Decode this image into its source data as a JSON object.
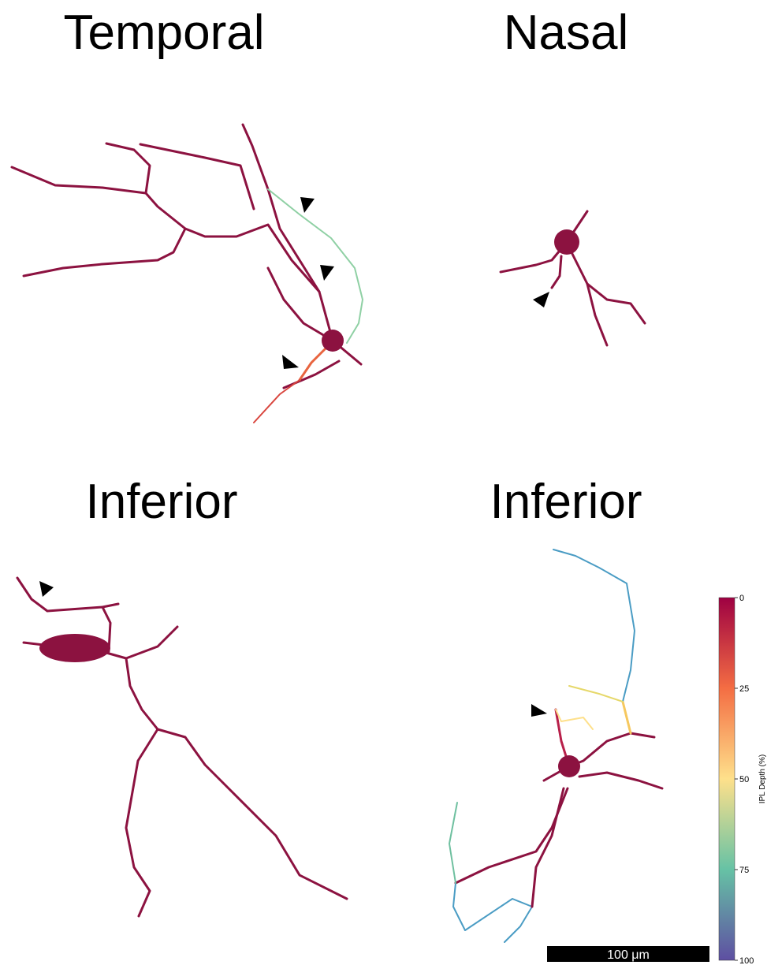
{
  "panels": [
    {
      "title": "Temporal"
    },
    {
      "title": "Nasal"
    },
    {
      "title": "Inferior"
    },
    {
      "title": "Inferior"
    }
  ],
  "colorbar": {
    "label": "IPL Depth (%)",
    "lim": [
      0,
      100
    ],
    "ticks": [
      0,
      25,
      50,
      75,
      100
    ],
    "colors": [
      "#9e0142",
      "#f46d43",
      "#fee08b",
      "#66c2a5",
      "#5e4fa2"
    ]
  },
  "scale_bar": {
    "label": "100 μm"
  }
}
